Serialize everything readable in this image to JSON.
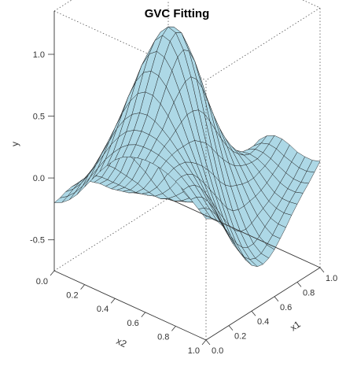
{
  "chart_data": {
    "type": "surface3d",
    "title": "GVC Fitting",
    "xlabel": "x1",
    "ylabel": "x2",
    "zlabel": "y",
    "xlim": [
      0,
      1
    ],
    "ylim": [
      0,
      1
    ],
    "zlim": [
      -0.75,
      1.35
    ],
    "z_ticks": [
      "-0.5",
      "0.0",
      "0.5",
      "1.0"
    ],
    "x_ticks": [
      "0.0",
      "0.2",
      "0.4",
      "0.6",
      "0.8",
      "1.0"
    ],
    "y_ticks": [
      "0.0",
      "0.2",
      "0.4",
      "0.6",
      "0.8",
      "1.0"
    ],
    "surface_color": "#add8e6",
    "mesh_color": "#1a1a1a",
    "box": "dotted",
    "grid_x": [
      0,
      0.05,
      0.1,
      0.15,
      0.2,
      0.25,
      0.3,
      0.35,
      0.4,
      0.45,
      0.5,
      0.55,
      0.6,
      0.65,
      0.7,
      0.75,
      0.8,
      0.85,
      0.9,
      0.95,
      1.0
    ],
    "grid_y": [
      0,
      0.05,
      0.1,
      0.15,
      0.2,
      0.25,
      0.3,
      0.35,
      0.4,
      0.45,
      0.5,
      0.55,
      0.6,
      0.65,
      0.7,
      0.75,
      0.8,
      0.85,
      0.9,
      0.95,
      1.0
    ],
    "z": [
      [
        -0.2,
        -0.17,
        -0.12,
        -0.05,
        0.04,
        0.13,
        0.22,
        0.3,
        0.37,
        0.42,
        0.45,
        0.47,
        0.48,
        0.48,
        0.47,
        0.45,
        0.42,
        0.38,
        0.33,
        0.28,
        0.23
      ],
      [
        -0.19,
        -0.15,
        -0.09,
        -0.01,
        0.09,
        0.19,
        0.29,
        0.37,
        0.44,
        0.49,
        0.52,
        0.53,
        0.53,
        0.52,
        0.5,
        0.47,
        0.43,
        0.38,
        0.32,
        0.26,
        0.2
      ],
      [
        -0.17,
        -0.12,
        -0.05,
        0.05,
        0.16,
        0.27,
        0.38,
        0.47,
        0.54,
        0.58,
        0.6,
        0.6,
        0.59,
        0.56,
        0.52,
        0.47,
        0.42,
        0.36,
        0.29,
        0.22,
        0.15
      ],
      [
        -0.16,
        -0.1,
        -0.02,
        0.09,
        0.22,
        0.35,
        0.48,
        0.58,
        0.65,
        0.69,
        0.7,
        0.68,
        0.64,
        0.59,
        0.53,
        0.46,
        0.39,
        0.31,
        0.23,
        0.15,
        0.08
      ],
      [
        -0.16,
        -0.09,
        0.01,
        0.14,
        0.28,
        0.43,
        0.58,
        0.7,
        0.79,
        0.83,
        0.83,
        0.79,
        0.72,
        0.63,
        0.53,
        0.43,
        0.33,
        0.23,
        0.14,
        0.05,
        -0.02
      ],
      [
        -0.17,
        -0.1,
        0.01,
        0.15,
        0.32,
        0.5,
        0.68,
        0.83,
        0.93,
        0.97,
        0.96,
        0.9,
        0.8,
        0.67,
        0.53,
        0.39,
        0.26,
        0.14,
        0.03,
        -0.06,
        -0.12
      ],
      [
        -0.2,
        -0.13,
        -0.01,
        0.14,
        0.33,
        0.54,
        0.75,
        0.93,
        1.05,
        1.1,
        1.08,
        1.0,
        0.86,
        0.7,
        0.52,
        0.34,
        0.18,
        0.04,
        -0.08,
        -0.17,
        -0.22
      ],
      [
        -0.24,
        -0.17,
        -0.05,
        0.11,
        0.32,
        0.56,
        0.79,
        0.99,
        1.13,
        1.2,
        1.18,
        1.08,
        0.91,
        0.7,
        0.48,
        0.28,
        0.1,
        -0.05,
        -0.17,
        -0.26,
        -0.31
      ],
      [
        -0.28,
        -0.22,
        -0.1,
        0.07,
        0.29,
        0.54,
        0.79,
        1.01,
        1.17,
        1.24,
        1.22,
        1.11,
        0.92,
        0.68,
        0.44,
        0.21,
        0.02,
        -0.14,
        -0.26,
        -0.34,
        -0.38
      ],
      [
        -0.33,
        -0.27,
        -0.16,
        0.01,
        0.23,
        0.48,
        0.74,
        0.97,
        1.13,
        1.21,
        1.19,
        1.07,
        0.87,
        0.62,
        0.37,
        0.13,
        -0.06,
        -0.21,
        -0.32,
        -0.39,
        -0.42
      ],
      [
        -0.38,
        -0.32,
        -0.22,
        -0.06,
        0.15,
        0.39,
        0.64,
        0.86,
        1.02,
        1.09,
        1.07,
        0.96,
        0.77,
        0.53,
        0.29,
        0.07,
        -0.11,
        -0.25,
        -0.35,
        -0.41,
        -0.43
      ],
      [
        -0.42,
        -0.37,
        -0.28,
        -0.14,
        0.05,
        0.26,
        0.49,
        0.69,
        0.84,
        0.91,
        0.9,
        0.8,
        0.63,
        0.43,
        0.22,
        0.03,
        -0.13,
        -0.26,
        -0.35,
        -0.4,
        -0.41
      ],
      [
        -0.46,
        -0.42,
        -0.34,
        -0.22,
        -0.06,
        0.12,
        0.32,
        0.5,
        0.63,
        0.7,
        0.7,
        0.62,
        0.49,
        0.33,
        0.16,
        0.01,
        -0.13,
        -0.24,
        -0.32,
        -0.36,
        -0.37
      ],
      [
        -0.5,
        -0.47,
        -0.41,
        -0.31,
        -0.18,
        -0.03,
        0.13,
        0.29,
        0.41,
        0.48,
        0.49,
        0.45,
        0.36,
        0.24,
        0.11,
        -0.01,
        -0.12,
        -0.21,
        -0.27,
        -0.31,
        -0.31
      ],
      [
        -0.53,
        -0.51,
        -0.47,
        -0.4,
        -0.3,
        -0.18,
        -0.05,
        0.08,
        0.19,
        0.27,
        0.31,
        0.3,
        0.25,
        0.17,
        0.08,
        -0.02,
        -0.11,
        -0.18,
        -0.23,
        -0.25,
        -0.25
      ],
      [
        -0.55,
        -0.55,
        -0.53,
        -0.48,
        -0.41,
        -0.32,
        -0.22,
        -0.11,
        0.0,
        0.09,
        0.15,
        0.17,
        0.16,
        0.12,
        0.06,
        -0.02,
        -0.09,
        -0.15,
        -0.18,
        -0.19,
        -0.18
      ],
      [
        -0.56,
        -0.58,
        -0.58,
        -0.55,
        -0.5,
        -0.44,
        -0.36,
        -0.26,
        -0.16,
        -0.06,
        0.02,
        0.07,
        0.09,
        0.08,
        0.05,
        0.0,
        -0.06,
        -0.11,
        -0.13,
        -0.13,
        -0.12
      ],
      [
        -0.56,
        -0.59,
        -0.61,
        -0.6,
        -0.57,
        -0.52,
        -0.46,
        -0.38,
        -0.28,
        -0.17,
        -0.07,
        0.01,
        0.05,
        0.06,
        0.05,
        0.02,
        -0.02,
        -0.06,
        -0.08,
        -0.08,
        -0.06
      ],
      [
        -0.55,
        -0.59,
        -0.62,
        -0.63,
        -0.61,
        -0.58,
        -0.53,
        -0.46,
        -0.37,
        -0.25,
        -0.13,
        -0.03,
        0.04,
        0.07,
        0.07,
        0.05,
        0.02,
        -0.01,
        -0.03,
        -0.03,
        -0.01
      ],
      [
        -0.53,
        -0.58,
        -0.62,
        -0.64,
        -0.64,
        -0.61,
        -0.57,
        -0.51,
        -0.42,
        -0.3,
        -0.17,
        -0.05,
        0.04,
        0.09,
        0.11,
        0.1,
        0.07,
        0.05,
        0.03,
        0.03,
        0.05
      ],
      [
        -0.51,
        -0.56,
        -0.61,
        -0.64,
        -0.64,
        -0.62,
        -0.59,
        -0.53,
        -0.44,
        -0.32,
        -0.18,
        -0.05,
        0.06,
        0.12,
        0.15,
        0.15,
        0.13,
        0.1,
        0.09,
        0.09,
        0.11
      ]
    ]
  }
}
